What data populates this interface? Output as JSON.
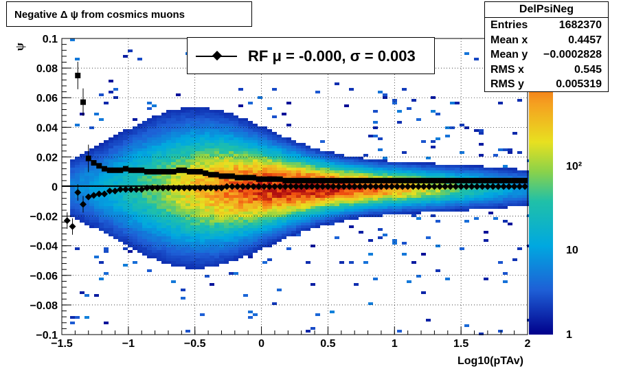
{
  "chart_data": {
    "type": "heatmap",
    "title": "Negative Δ ψ from cosmics muons",
    "xlabel": "Log10(pTAv)",
    "ylabel": "ψ",
    "xlim": [
      -1.5,
      2.0
    ],
    "ylim": [
      -0.1,
      0.1
    ],
    "x_ticks": [
      "−1.5",
      "−1",
      "−0.5",
      "0",
      "0.5",
      "1",
      "1.5",
      "2"
    ],
    "y_ticks": [
      "0.1",
      "0.08",
      "0.06",
      "0.04",
      "0.02",
      "0",
      "−0.02",
      "−0.04",
      "−0.06",
      "−0.08",
      "−0.1"
    ],
    "colorbar": {
      "scale": "log",
      "labels": [
        "1",
        "10",
        "10²"
      ]
    },
    "grid": true,
    "series": [
      {
        "marker": "square",
        "x": [
          -1.38,
          -1.34,
          -1.3,
          -1.26,
          -1.22,
          -1.18,
          -1.14,
          -1.1,
          -1.06,
          -1.02,
          -0.98,
          -0.94,
          -0.9,
          -0.86,
          -0.82,
          -0.78,
          -0.74,
          -0.7,
          -0.66,
          -0.62,
          -0.58,
          -0.54,
          -0.5,
          -0.46,
          -0.42,
          -0.38,
          -0.34,
          -0.3,
          -0.26,
          -0.22,
          -0.18,
          -0.14,
          -0.1,
          -0.06,
          -0.02,
          0.02,
          0.06,
          0.1,
          0.14,
          0.18,
          0.22,
          0.26,
          0.3,
          0.34,
          0.38,
          0.42,
          0.46,
          0.5,
          0.54,
          0.58,
          0.62,
          0.66,
          0.7,
          0.74,
          0.78,
          0.82,
          0.86,
          0.9,
          0.94,
          0.98,
          1.02,
          1.06,
          1.1,
          1.14,
          1.18,
          1.22,
          1.26,
          1.3,
          1.34,
          1.38,
          1.42,
          1.46,
          1.5,
          1.54,
          1.58,
          1.62,
          1.66,
          1.7,
          1.74,
          1.78,
          1.82,
          1.86,
          1.9,
          1.94,
          1.98
        ],
        "y": [
          0.075,
          0.057,
          0.019,
          0.016,
          0.014,
          0.012,
          0.011,
          0.011,
          0.011,
          0.012,
          0.011,
          0.011,
          0.011,
          0.01,
          0.01,
          0.01,
          0.01,
          0.01,
          0.01,
          0.011,
          0.011,
          0.01,
          0.01,
          0.01,
          0.009,
          0.008,
          0.008,
          0.007,
          0.007,
          0.007,
          0.006,
          0.006,
          0.006,
          0.006,
          0.005,
          0.005,
          0.005,
          0.005,
          0.005,
          0.004,
          0.004,
          0.004,
          0.004,
          0.004,
          0.004,
          0.004,
          0.004,
          0.004,
          0.004,
          0.004,
          0.004,
          0.004,
          0.004,
          0.004,
          0.004,
          0.004,
          0.004,
          0.004,
          0.004,
          0.004,
          0.004,
          0.004,
          0.004,
          0.004,
          0.004,
          0.004,
          0.004,
          0.004,
          0.004,
          0.004,
          0.004,
          0.004,
          0.004,
          0.004,
          0.004,
          0.004,
          0.004,
          0.004,
          0.004,
          0.004,
          0.004,
          0.004,
          0.004,
          0.004,
          0.004
        ]
      },
      {
        "name": "RF μ = -0.000, σ =   0.003",
        "marker": "diamond",
        "x": [
          -1.46,
          -1.42,
          -1.38,
          -1.34,
          -1.3,
          -1.26,
          -1.22,
          -1.18,
          -1.14,
          -1.1,
          -1.06,
          -1.02,
          -0.98,
          -0.94,
          -0.9,
          -0.86,
          -0.82,
          -0.78,
          -0.74,
          -0.7,
          -0.66,
          -0.62,
          -0.58,
          -0.54,
          -0.5,
          -0.46,
          -0.42,
          -0.38,
          -0.34,
          -0.3,
          -0.26,
          -0.22,
          -0.18,
          -0.14,
          -0.1,
          -0.06,
          -0.02,
          0.02,
          0.06,
          0.1,
          0.14,
          0.18,
          0.22,
          0.26,
          0.3,
          0.34,
          0.38,
          0.42,
          0.46,
          0.5,
          0.54,
          0.58,
          0.62,
          0.66,
          0.7,
          0.74,
          0.78,
          0.82,
          0.86,
          0.9,
          0.94,
          0.98,
          1.02,
          1.06,
          1.1,
          1.14,
          1.18,
          1.22,
          1.26,
          1.3,
          1.34,
          1.38,
          1.42,
          1.46,
          1.5,
          1.54,
          1.58,
          1.62,
          1.66,
          1.7,
          1.74,
          1.78,
          1.82,
          1.86,
          1.9,
          1.94,
          1.98
        ],
        "y": [
          -0.023,
          -0.027,
          -0.004,
          -0.012,
          -0.007,
          -0.006,
          -0.005,
          -0.005,
          -0.003,
          -0.003,
          -0.002,
          -0.002,
          -0.002,
          -0.002,
          -0.002,
          -0.001,
          -0.001,
          -0.001,
          -0.001,
          -0.001,
          -0.001,
          -0.001,
          -0.001,
          -0.001,
          -0.001,
          -0.001,
          -0.001,
          -0.001,
          -0.001,
          -0.001,
          0.0,
          0.0,
          0.0,
          0.0,
          0.0,
          0.0,
          0.0,
          0.0,
          0.0,
          0.0,
          0.0,
          0.0,
          0.0,
          0.0,
          0.0,
          0.0,
          0.0,
          0.0,
          0.0,
          0.0,
          0.0,
          0.0,
          0.0,
          0.0,
          0.0,
          0.0,
          0.0,
          0.0,
          0.0,
          0.0,
          0.0,
          0.0,
          0.0,
          0.0,
          0.0,
          0.0,
          0.0,
          0.0,
          0.0,
          0.0,
          0.0,
          0.0,
          0.0,
          0.0,
          0.0,
          0.0,
          0.0,
          0.0,
          0.0,
          0.0,
          0.0,
          0.0,
          0.0,
          0.0,
          0.0,
          0.0,
          0.0
        ]
      }
    ],
    "fit_line_y": 0.0
  },
  "title_box": {
    "text": "Negative Δ ψ from cosmics muons"
  },
  "stats": {
    "name": "DelPsiNeg",
    "rows": [
      {
        "label": "Entries",
        "value": "1682370"
      },
      {
        "label": "Mean x",
        "value": "0.4457"
      },
      {
        "label": "Mean y",
        "value": "−0.0002828"
      },
      {
        "label": "RMS x",
        "value": "0.545"
      },
      {
        "label": "RMS y",
        "value": "0.005319"
      }
    ]
  },
  "legend": {
    "text": "RF μ = -0.000, σ =   0.003"
  }
}
